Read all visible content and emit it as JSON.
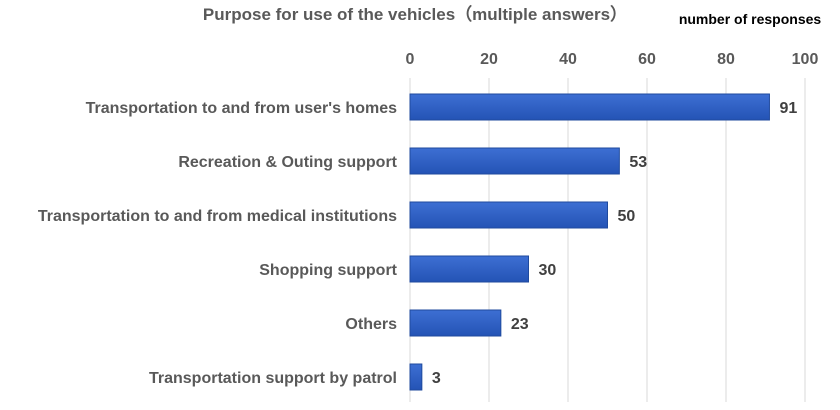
{
  "chart_data": {
    "type": "bar",
    "orientation": "horizontal",
    "title": "Purpose for use of the vehicles（multiple answers）",
    "unit_label": "number of responses",
    "categories": [
      "Transportation to and from user's homes",
      "Recreation & Outing support",
      "Transportation to and from medical institutions",
      "Shopping support",
      "Others",
      "Transportation support by patrol"
    ],
    "values": [
      91,
      53,
      50,
      30,
      23,
      3
    ],
    "xlim": [
      0,
      100
    ],
    "ticks": [
      "0",
      "20",
      "40",
      "60",
      "80",
      "100"
    ],
    "tick_values": [
      0,
      20,
      40,
      60,
      80,
      100
    ],
    "axis_position": "top",
    "grid": true,
    "bar_color": "#2f5fc4",
    "bar_edge_color": "#1f4a9e",
    "grid_color": "#d9d9d9"
  }
}
